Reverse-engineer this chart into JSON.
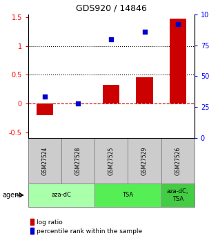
{
  "title": "GDS920 / 14846",
  "samples": [
    "GSM27524",
    "GSM27528",
    "GSM27525",
    "GSM27529",
    "GSM27526"
  ],
  "log_ratios": [
    -0.2,
    0.0,
    0.32,
    0.45,
    1.48
  ],
  "percentile_ranks": [
    0.12,
    0.0,
    1.12,
    1.25,
    1.38
  ],
  "agents": [
    {
      "label": "aza-dC",
      "span": [
        0,
        2
      ],
      "color": "#aaffaa"
    },
    {
      "label": "TSA",
      "span": [
        2,
        4
      ],
      "color": "#55ee55"
    },
    {
      "label": "aza-dC,\nTSA",
      "span": [
        4,
        5
      ],
      "color": "#44cc44"
    }
  ],
  "ylim_left": [
    -0.6,
    1.55
  ],
  "ylim_right": [
    0,
    100
  ],
  "yticks_left": [
    -0.5,
    0.0,
    0.5,
    1.0,
    1.5
  ],
  "ytick_labels_left": [
    "-0.5",
    "0",
    "0.5",
    "1",
    "1.5"
  ],
  "yticks_right": [
    0,
    25,
    50,
    75,
    100
  ],
  "ytick_labels_right": [
    "0",
    "25",
    "50",
    "75",
    "100%"
  ],
  "hlines": [
    0.0,
    0.5,
    1.0
  ],
  "hline_styles": [
    "--",
    ":",
    ":"
  ],
  "hline_colors": [
    "#cc0000",
    "#000000",
    "#000000"
  ],
  "bar_color": "#cc0000",
  "dot_color": "#0000cc",
  "bar_width": 0.5,
  "sample_bg_color": "#cccccc",
  "sample_border_color": "#888888",
  "legend_items": [
    {
      "color": "#cc0000",
      "label": "log ratio"
    },
    {
      "color": "#0000cc",
      "label": "percentile rank within the sample"
    }
  ]
}
